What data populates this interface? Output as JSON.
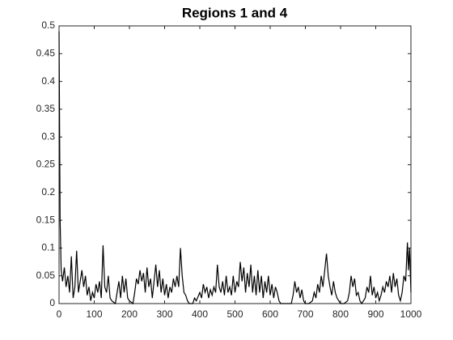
{
  "chart_data": {
    "type": "line",
    "title": "Regions 1 and 4",
    "x": [
      0,
      3,
      6,
      10,
      15,
      20,
      25,
      30,
      35,
      40,
      45,
      50,
      55,
      60,
      65,
      70,
      75,
      80,
      85,
      90,
      95,
      100,
      105,
      110,
      115,
      120,
      125,
      130,
      135,
      140,
      145,
      150,
      160,
      165,
      170,
      175,
      180,
      185,
      190,
      195,
      200,
      210,
      215,
      220,
      225,
      230,
      235,
      240,
      245,
      250,
      255,
      260,
      265,
      270,
      275,
      280,
      285,
      290,
      295,
      300,
      305,
      310,
      315,
      320,
      325,
      330,
      335,
      340,
      345,
      350,
      355,
      360,
      365,
      370,
      380,
      385,
      390,
      400,
      405,
      410,
      415,
      420,
      425,
      430,
      435,
      440,
      445,
      450,
      455,
      460,
      465,
      470,
      475,
      480,
      485,
      490,
      495,
      500,
      505,
      510,
      515,
      520,
      525,
      530,
      535,
      540,
      545,
      550,
      555,
      560,
      565,
      570,
      575,
      580,
      585,
      590,
      595,
      600,
      605,
      610,
      615,
      620,
      625,
      630,
      640,
      650,
      660,
      665,
      670,
      675,
      680,
      685,
      690,
      695,
      700,
      710,
      720,
      725,
      730,
      735,
      740,
      745,
      750,
      755,
      760,
      765,
      770,
      775,
      780,
      785,
      790,
      795,
      800,
      810,
      820,
      825,
      830,
      835,
      840,
      845,
      850,
      855,
      860,
      870,
      875,
      880,
      885,
      890,
      895,
      900,
      905,
      910,
      915,
      920,
      925,
      930,
      935,
      940,
      945,
      950,
      955,
      960,
      965,
      970,
      975,
      980,
      985,
      990,
      993,
      996,
      1000
    ],
    "series": [
      {
        "name": "Regions 1 and 4",
        "color": "#000000",
        "values": [
          0.49,
          0.15,
          0.06,
          0.04,
          0.065,
          0.03,
          0.05,
          0.02,
          0.085,
          0.01,
          0.03,
          0.095,
          0.02,
          0.04,
          0.06,
          0.03,
          0.05,
          0.015,
          0.03,
          0.005,
          0.02,
          0.01,
          0.035,
          0.02,
          0.04,
          0.01,
          0.105,
          0.03,
          0.02,
          0.05,
          0.01,
          0.005,
          0.0,
          0.02,
          0.04,
          0.01,
          0.05,
          0.02,
          0.045,
          0.01,
          0.005,
          0.0,
          0.02,
          0.045,
          0.035,
          0.06,
          0.04,
          0.055,
          0.02,
          0.065,
          0.03,
          0.045,
          0.01,
          0.04,
          0.07,
          0.03,
          0.06,
          0.02,
          0.045,
          0.015,
          0.035,
          0.01,
          0.03,
          0.02,
          0.045,
          0.03,
          0.05,
          0.03,
          0.1,
          0.05,
          0.02,
          0.015,
          0.005,
          0.0,
          0.0,
          0.01,
          0.005,
          0.02,
          0.01,
          0.035,
          0.02,
          0.03,
          0.01,
          0.025,
          0.015,
          0.03,
          0.02,
          0.07,
          0.03,
          0.02,
          0.04,
          0.015,
          0.05,
          0.02,
          0.03,
          0.015,
          0.05,
          0.02,
          0.04,
          0.03,
          0.075,
          0.04,
          0.065,
          0.02,
          0.055,
          0.03,
          0.07,
          0.02,
          0.05,
          0.015,
          0.06,
          0.02,
          0.05,
          0.01,
          0.04,
          0.02,
          0.05,
          0.015,
          0.035,
          0.01,
          0.03,
          0.02,
          0.005,
          0.0,
          0.0,
          0.0,
          0.0,
          0.015,
          0.04,
          0.02,
          0.03,
          0.01,
          0.025,
          0.005,
          0.0,
          0.0,
          0.005,
          0.02,
          0.01,
          0.035,
          0.02,
          0.05,
          0.03,
          0.06,
          0.09,
          0.05,
          0.03,
          0.015,
          0.04,
          0.02,
          0.01,
          0.005,
          0.0,
          0.0,
          0.005,
          0.02,
          0.05,
          0.03,
          0.045,
          0.015,
          0.02,
          0.005,
          0.0,
          0.01,
          0.03,
          0.02,
          0.05,
          0.015,
          0.03,
          0.01,
          0.02,
          0.005,
          0.015,
          0.03,
          0.02,
          0.04,
          0.03,
          0.05,
          0.02,
          0.055,
          0.03,
          0.045,
          0.015,
          0.005,
          0.02,
          0.05,
          0.04,
          0.11,
          0.06,
          0.1,
          0.02
        ]
      }
    ],
    "xlim": [
      0,
      1000
    ],
    "xticks": [
      0,
      100,
      200,
      300,
      400,
      500,
      600,
      700,
      800,
      900,
      1000
    ],
    "ylim": [
      0,
      0.5
    ],
    "yticks": [
      0,
      0.05,
      0.1,
      0.15,
      0.2,
      0.25,
      0.3,
      0.35,
      0.4,
      0.45,
      0.5
    ]
  }
}
